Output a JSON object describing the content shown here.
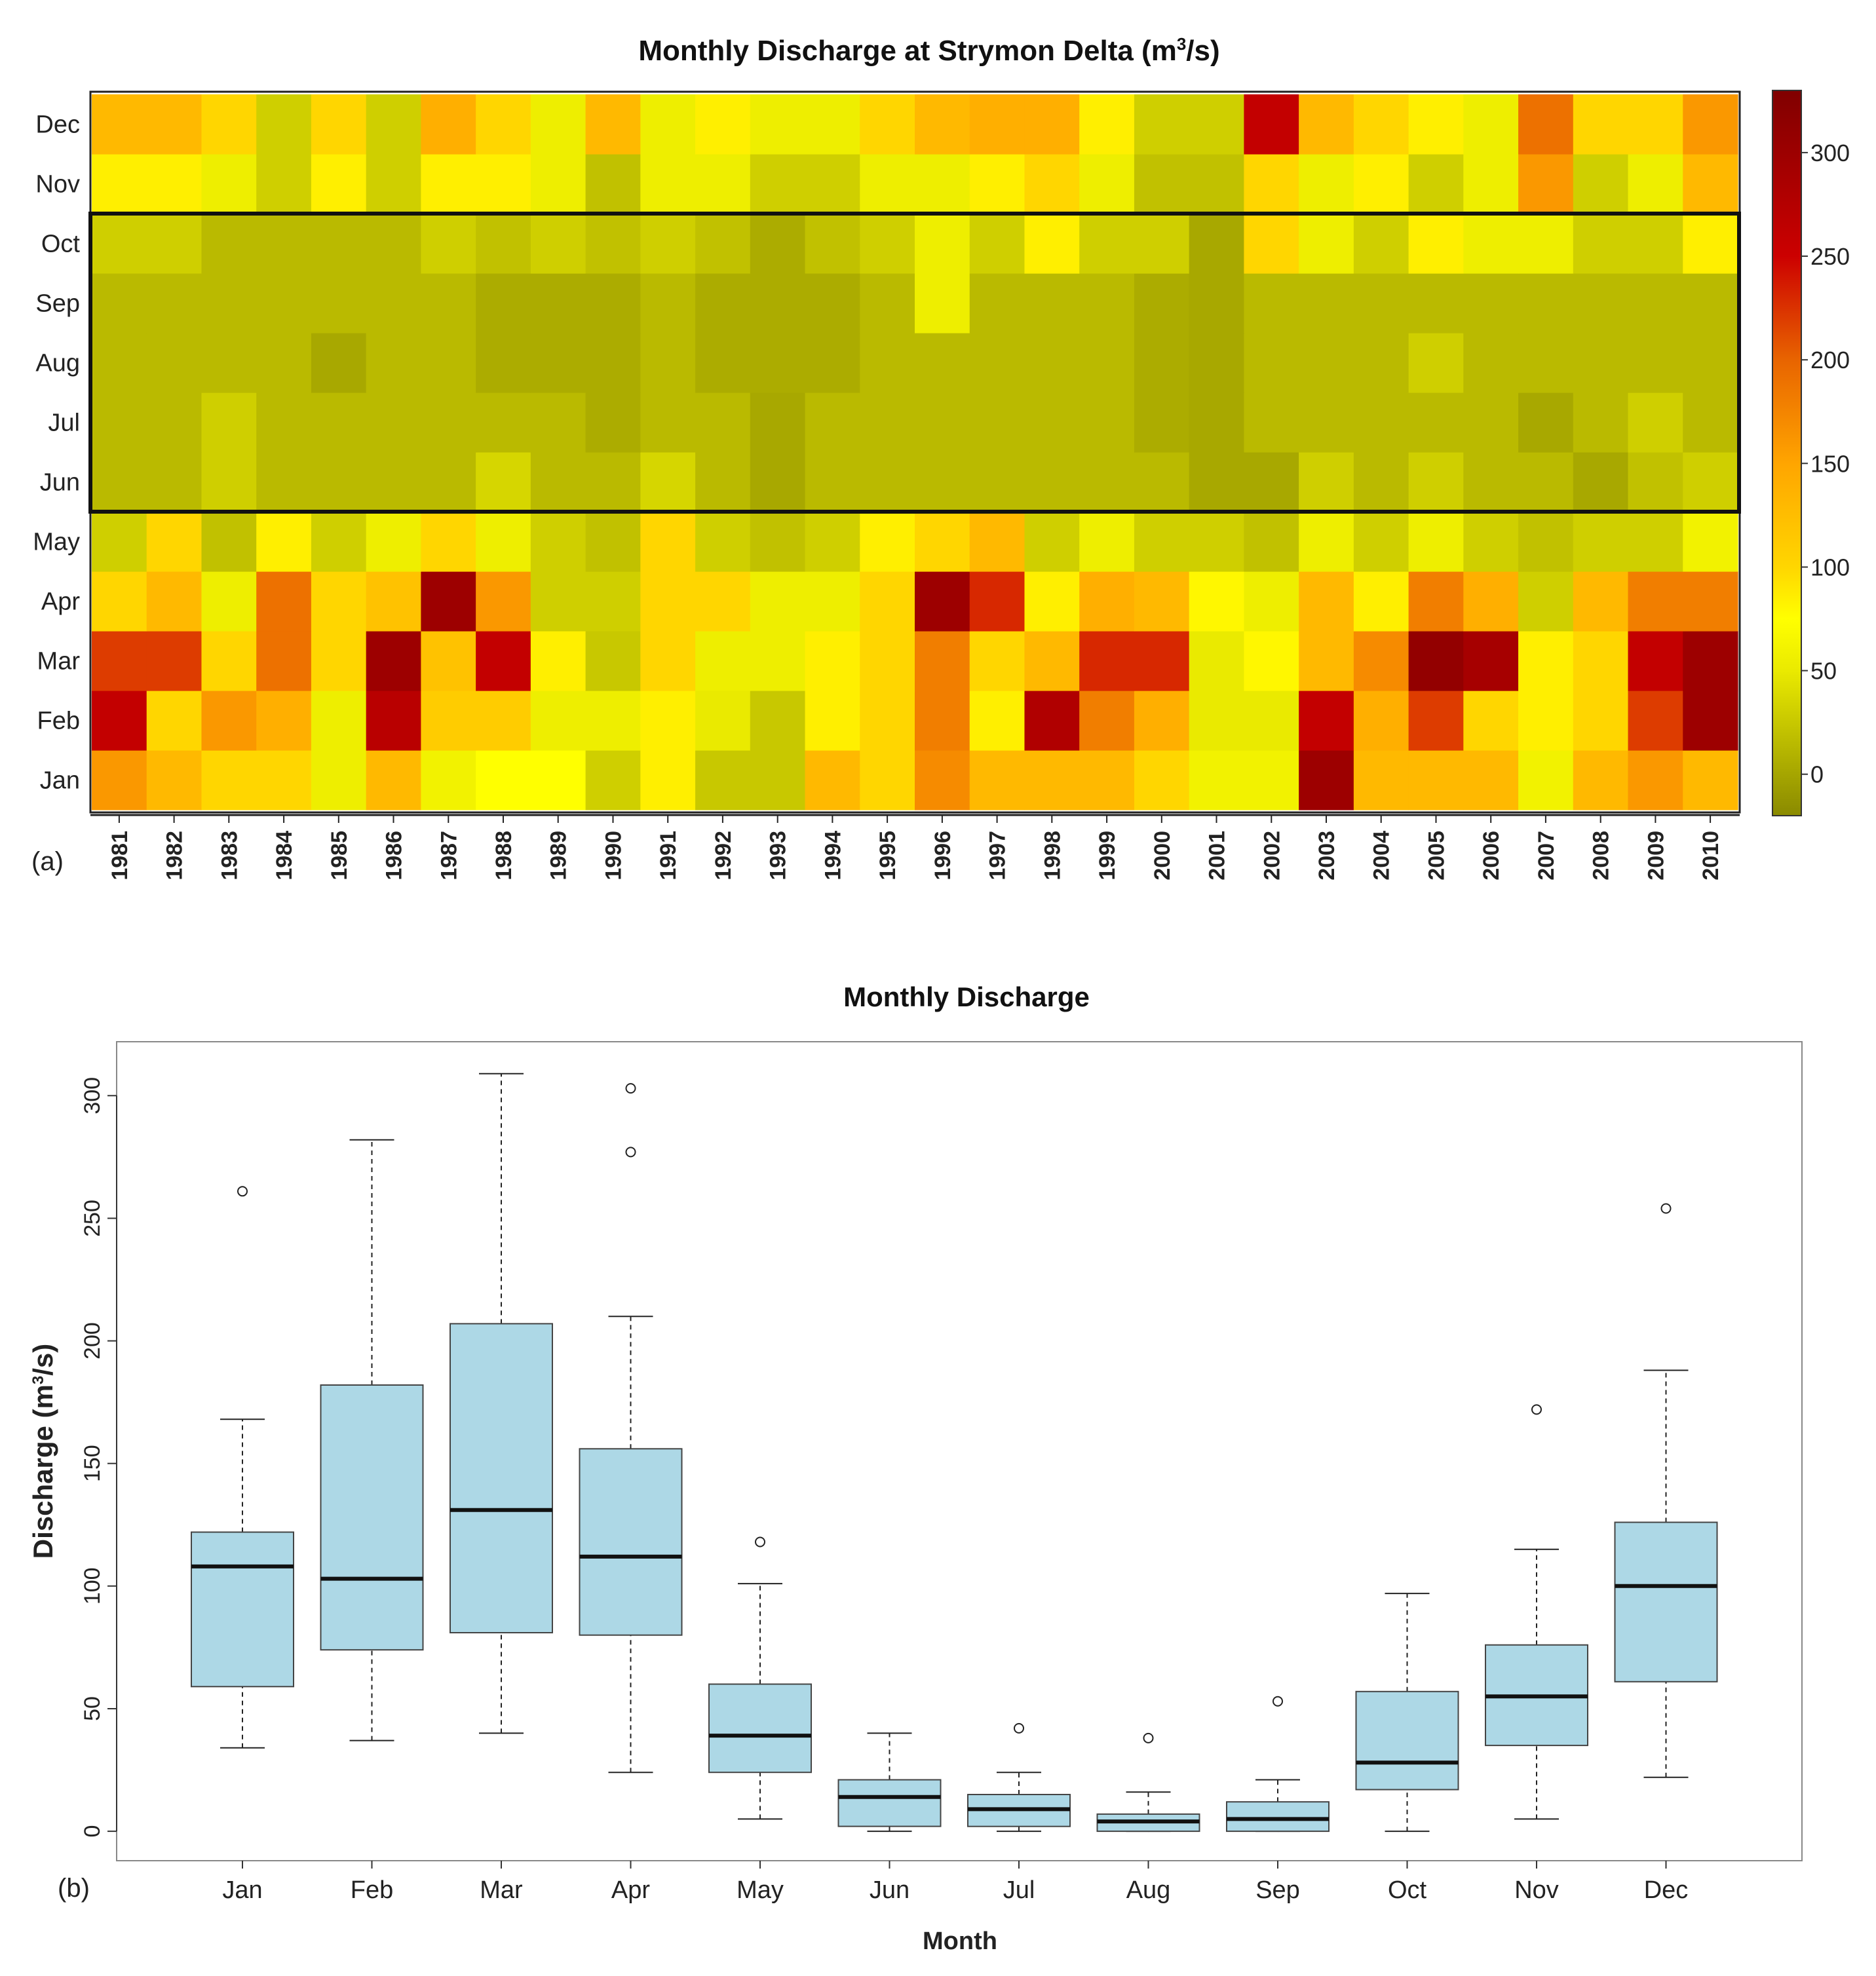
{
  "chart_data": [
    {
      "type": "heatmap",
      "panel_label": "(a)",
      "title_main": "Monthly Discharge at Strymon Delta (m",
      "title_sup": "3",
      "title_end": "/s)",
      "x_categories": [
        "1981",
        "1982",
        "1983",
        "1984",
        "1985",
        "1986",
        "1987",
        "1988",
        "1989",
        "1990",
        "1991",
        "1992",
        "1993",
        "1994",
        "1995",
        "1996",
        "1997",
        "1998",
        "1999",
        "2000",
        "2001",
        "2002",
        "2003",
        "2004",
        "2005",
        "2006",
        "2007",
        "2008",
        "2009",
        "2010"
      ],
      "y_categories": [
        "Jan",
        "Feb",
        "Mar",
        "Apr",
        "May",
        "Jun",
        "Jul",
        "Aug",
        "Sep",
        "Oct",
        "Nov",
        "Dec"
      ],
      "highlight_months": [
        "Jun",
        "Jul",
        "Aug",
        "Sep",
        "Oct"
      ],
      "color_scale": {
        "min": -20,
        "max": 330,
        "ticks": [
          0,
          50,
          100,
          150,
          200,
          250,
          300
        ],
        "stops": [
          {
            "v": -20,
            "color": "#8a8a00"
          },
          {
            "v": 25,
            "color": "#c8c800"
          },
          {
            "v": 50,
            "color": "#eaea00"
          },
          {
            "v": 75,
            "color": "#ffff00"
          },
          {
            "v": 100,
            "color": "#ffd600"
          },
          {
            "v": 150,
            "color": "#ffa500"
          },
          {
            "v": 200,
            "color": "#e86400"
          },
          {
            "v": 250,
            "color": "#cc0000"
          },
          {
            "v": 330,
            "color": "#800000"
          }
        ]
      },
      "values": [
        [
          160,
          130,
          100,
          100,
          55,
          130,
          60,
          75,
          75,
          30,
          85,
          25,
          25,
          130,
          100,
          170,
          130,
          130,
          130,
          100,
          60,
          60,
          300,
          130,
          130,
          130,
          60,
          130,
          160,
          130
        ],
        [
          260,
          100,
          160,
          140,
          55,
          270,
          110,
          110,
          55,
          55,
          85,
          50,
          25,
          85,
          100,
          180,
          85,
          280,
          180,
          140,
          50,
          50,
          260,
          140,
          220,
          100,
          85,
          100,
          220,
          300
        ],
        [
          220,
          220,
          100,
          190,
          100,
          300,
          120,
          260,
          85,
          25,
          100,
          55,
          55,
          85,
          100,
          180,
          100,
          130,
          230,
          230,
          50,
          80,
          130,
          170,
          310,
          290,
          85,
          100,
          260,
          300
        ],
        [
          100,
          130,
          55,
          190,
          100,
          120,
          300,
          160,
          30,
          30,
          100,
          100,
          55,
          55,
          100,
          300,
          230,
          85,
          140,
          130,
          80,
          55,
          130,
          85,
          180,
          140,
          30,
          130,
          180,
          180
        ],
        [
          30,
          100,
          20,
          85,
          30,
          55,
          100,
          55,
          30,
          20,
          100,
          30,
          20,
          30,
          85,
          100,
          130,
          30,
          55,
          30,
          30,
          20,
          55,
          30,
          55,
          30,
          20,
          30,
          30,
          60
        ],
        [
          15,
          15,
          30,
          15,
          15,
          15,
          15,
          35,
          15,
          15,
          35,
          15,
          2,
          15,
          15,
          15,
          15,
          15,
          15,
          15,
          2,
          2,
          30,
          15,
          30,
          15,
          15,
          2,
          20,
          30
        ],
        [
          15,
          15,
          30,
          15,
          15,
          15,
          15,
          15,
          15,
          5,
          15,
          15,
          2,
          15,
          15,
          15,
          15,
          15,
          15,
          5,
          2,
          15,
          15,
          15,
          15,
          15,
          2,
          15,
          30,
          15
        ],
        [
          15,
          15,
          15,
          15,
          2,
          15,
          15,
          5,
          5,
          5,
          15,
          5,
          5,
          5,
          15,
          15,
          15,
          15,
          15,
          5,
          2,
          15,
          15,
          15,
          30,
          15,
          15,
          15,
          15,
          15
        ],
        [
          15,
          15,
          15,
          15,
          15,
          15,
          15,
          5,
          5,
          5,
          15,
          5,
          5,
          5,
          15,
          55,
          15,
          15,
          15,
          5,
          2,
          15,
          15,
          15,
          15,
          15,
          15,
          15,
          15,
          15
        ],
        [
          30,
          30,
          15,
          15,
          15,
          15,
          30,
          20,
          30,
          20,
          30,
          20,
          5,
          20,
          30,
          55,
          30,
          85,
          30,
          30,
          2,
          100,
          55,
          30,
          85,
          55,
          55,
          30,
          30,
          85
        ],
        [
          85,
          85,
          55,
          30,
          85,
          30,
          85,
          85,
          55,
          20,
          55,
          55,
          30,
          30,
          55,
          55,
          85,
          100,
          55,
          20,
          20,
          100,
          55,
          85,
          30,
          55,
          160,
          30,
          55,
          130
        ],
        [
          130,
          130,
          100,
          30,
          100,
          30,
          140,
          100,
          55,
          130,
          55,
          85,
          55,
          55,
          100,
          130,
          140,
          140,
          85,
          30,
          30,
          260,
          130,
          100,
          85,
          55,
          190,
          100,
          100,
          160
        ]
      ]
    },
    {
      "type": "box",
      "panel_label": "(b)",
      "title": "Monthly Discharge",
      "xlabel": "Month",
      "ylabel_main": "Discharge (m",
      "ylabel_sup": "3",
      "ylabel_end": "/s)",
      "ylim": [
        -12,
        322
      ],
      "yticks": [
        "0",
        "50",
        "100",
        "150",
        "200",
        "250",
        "300"
      ],
      "box_color": "#add8e6",
      "categories": [
        "Jan",
        "Feb",
        "Mar",
        "Apr",
        "May",
        "Jun",
        "Jul",
        "Aug",
        "Sep",
        "Oct",
        "Nov",
        "Dec"
      ],
      "boxes": [
        {
          "whisker_low": 34,
          "q1": 59,
          "median": 108,
          "q3": 122,
          "whisker_high": 168,
          "outliers": [
            261
          ]
        },
        {
          "whisker_low": 37,
          "q1": 74,
          "median": 103,
          "q3": 182,
          "whisker_high": 282,
          "outliers": []
        },
        {
          "whisker_low": 40,
          "q1": 81,
          "median": 131,
          "q3": 207,
          "whisker_high": 309,
          "outliers": []
        },
        {
          "whisker_low": 24,
          "q1": 80,
          "median": 112,
          "q3": 156,
          "whisker_high": 210,
          "outliers": [
            303,
            277
          ]
        },
        {
          "whisker_low": 5,
          "q1": 24,
          "median": 39,
          "q3": 60,
          "whisker_high": 101,
          "outliers": [
            118
          ]
        },
        {
          "whisker_low": 0,
          "q1": 2,
          "median": 14,
          "q3": 21,
          "whisker_high": 40,
          "outliers": []
        },
        {
          "whisker_low": 0,
          "q1": 2,
          "median": 9,
          "q3": 15,
          "whisker_high": 24,
          "outliers": [
            42
          ]
        },
        {
          "whisker_low": 0,
          "q1": 0,
          "median": 4,
          "q3": 7,
          "whisker_high": 16,
          "outliers": [
            38
          ]
        },
        {
          "whisker_low": 0,
          "q1": 0,
          "median": 5,
          "q3": 12,
          "whisker_high": 21,
          "outliers": [
            53
          ]
        },
        {
          "whisker_low": 0,
          "q1": 17,
          "median": 28,
          "q3": 57,
          "whisker_high": 97,
          "outliers": []
        },
        {
          "whisker_low": 5,
          "q1": 35,
          "median": 55,
          "q3": 76,
          "whisker_high": 115,
          "outliers": [
            172
          ]
        },
        {
          "whisker_low": 22,
          "q1": 61,
          "median": 100,
          "q3": 126,
          "whisker_high": 188,
          "outliers": [
            254
          ]
        }
      ]
    }
  ]
}
